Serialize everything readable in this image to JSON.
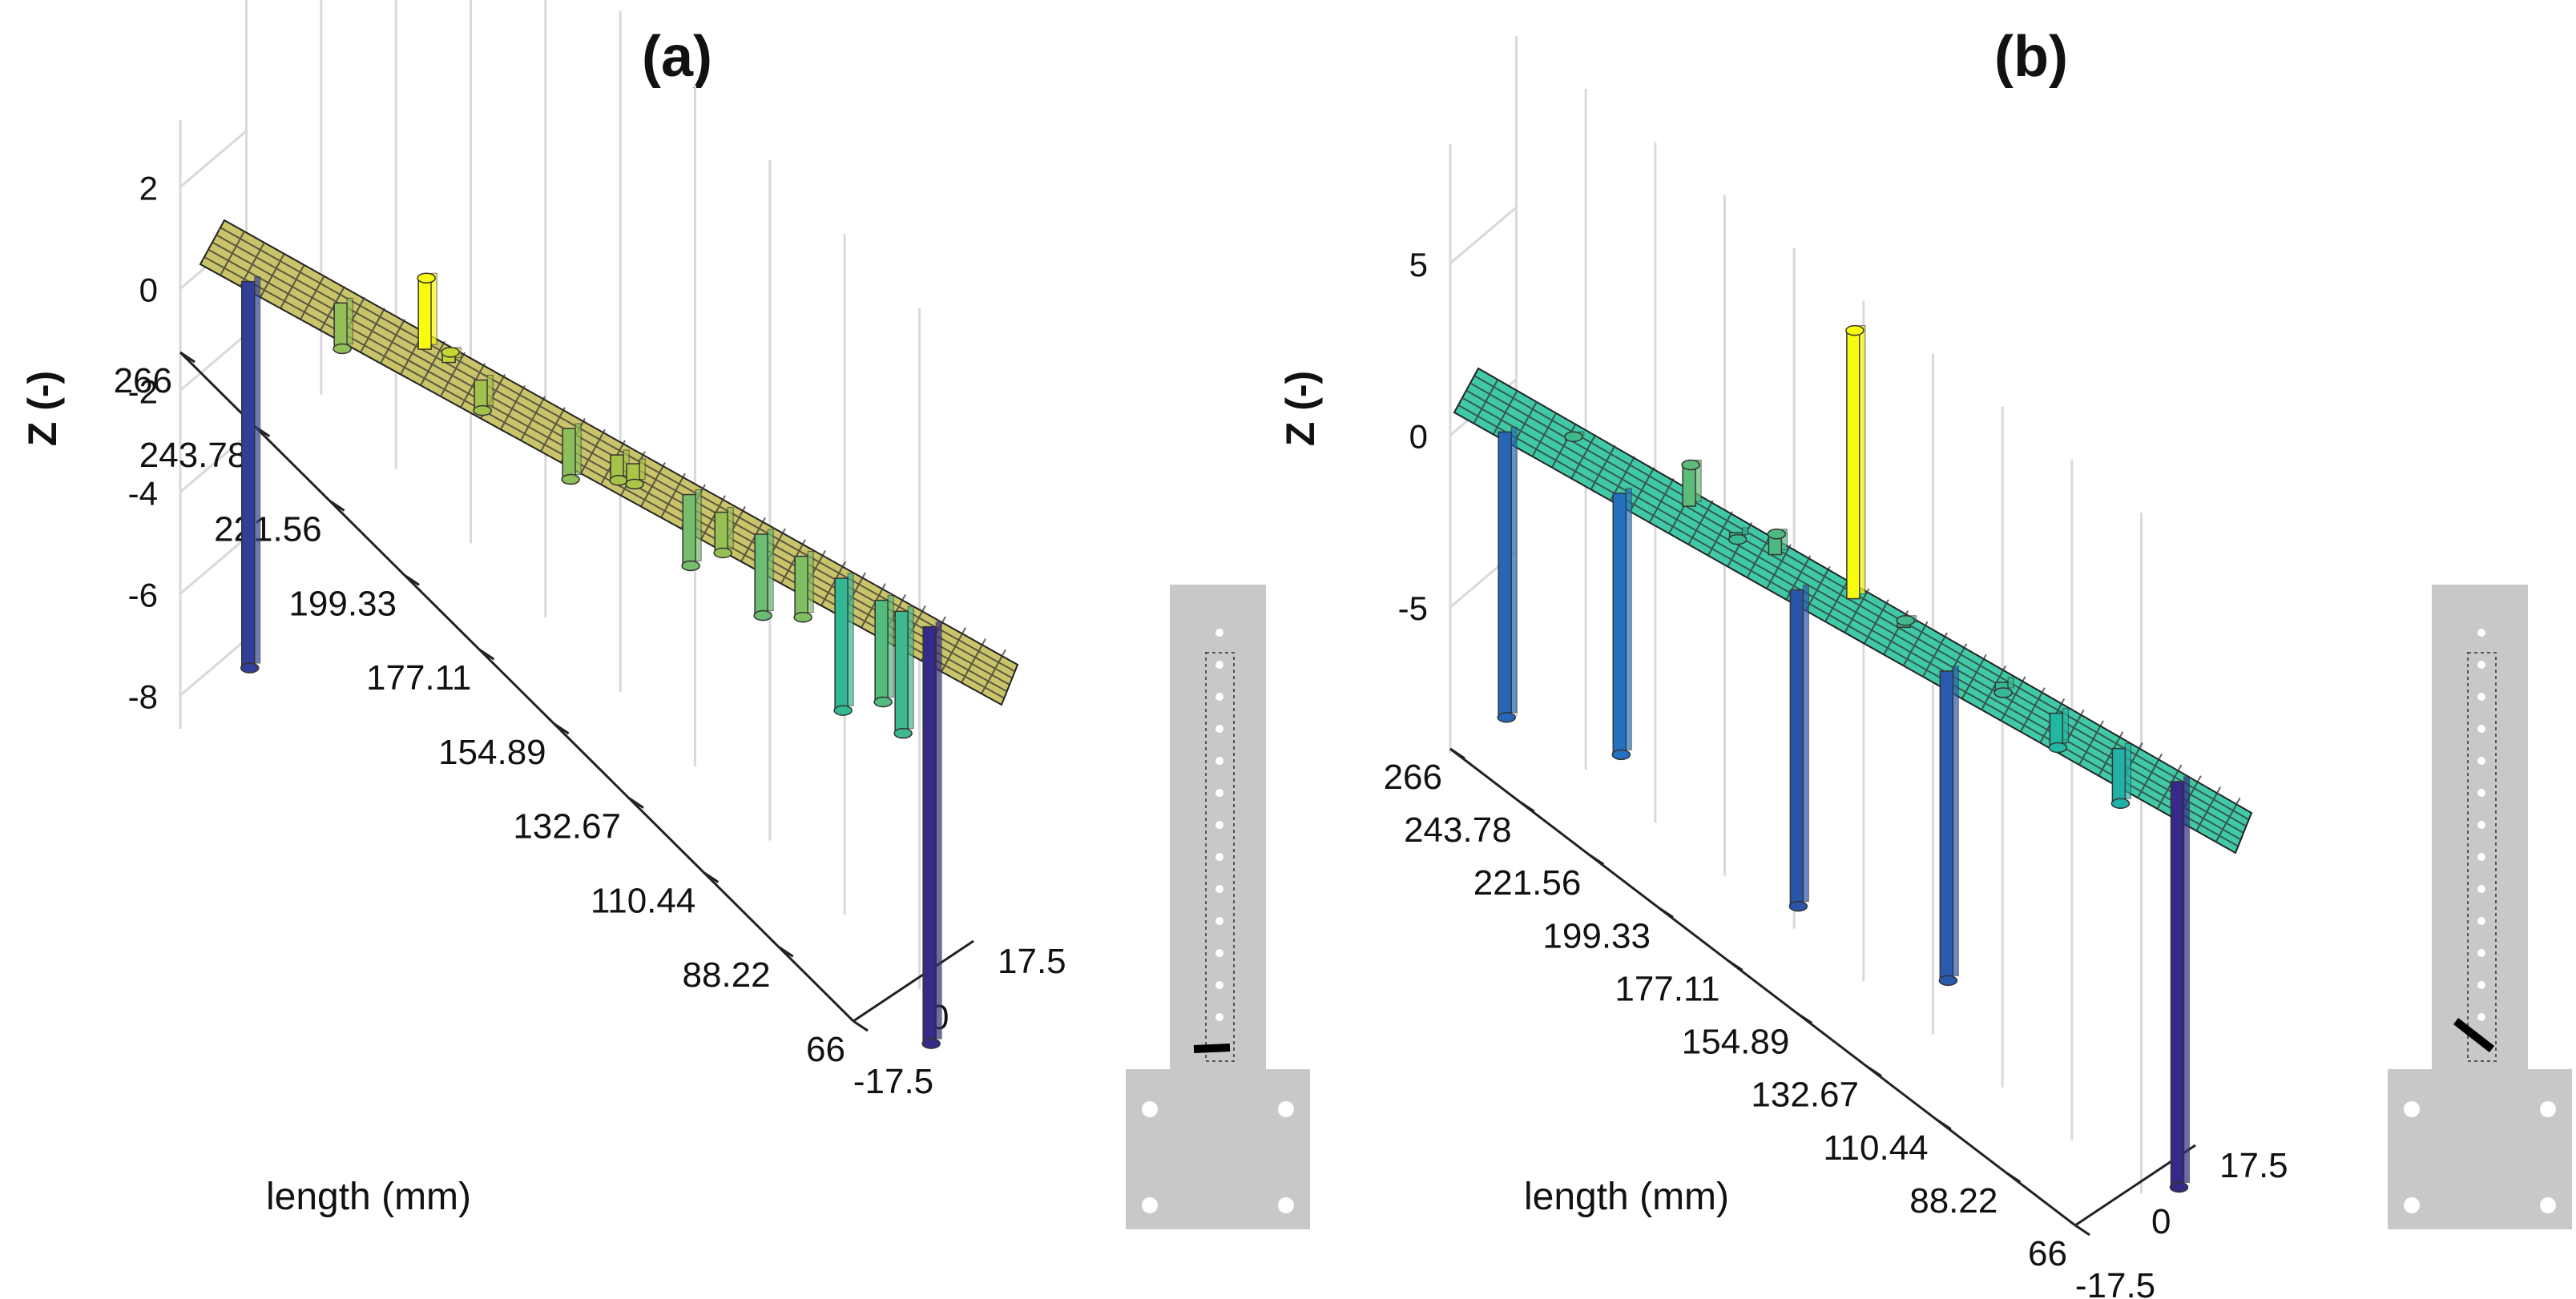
{
  "chart_data": [
    {
      "type": "bar3d",
      "panel_label": "(a)",
      "zlabel": "Z (-)",
      "xlabel": "length  (mm)",
      "z_ticks": [
        2,
        0,
        -2,
        -4,
        -6,
        -8
      ],
      "z_range": [
        -8.5,
        3
      ],
      "length_ticks": [
        "266",
        "243.78",
        "221.56",
        "199.33",
        "177.11",
        "154.89",
        "132.67",
        "110.44",
        "88.22",
        "66"
      ],
      "width_ticks": [
        "0",
        "17.5",
        "-17.5"
      ],
      "length_range": [
        66,
        266
      ],
      "width_range": [
        -17.5,
        17.5
      ],
      "surface_level": 0,
      "color_scale": "parula",
      "surface_color": "#c9c36a",
      "bars": [
        {
          "length": 255.0,
          "width": -12.0,
          "z": -7.6
        },
        {
          "length": 88.0,
          "width": 6.0,
          "z": -8.2
        },
        {
          "length": 214.0,
          "width": 6.0,
          "z": 1.4
        },
        {
          "length": 208.0,
          "width": 6.0,
          "z": 0.2
        },
        {
          "length": 200.0,
          "width": 6.0,
          "z": -0.6
        },
        {
          "length": 166.0,
          "width": 6.0,
          "z": -0.5
        },
        {
          "length": 162.0,
          "width": 6.0,
          "z": -0.4
        },
        {
          "length": 140.0,
          "width": 6.0,
          "z": -0.8
        },
        {
          "length": 120.0,
          "width": 6.0,
          "z": -1.2
        },
        {
          "length": 100.0,
          "width": 6.0,
          "z": -2.0
        },
        {
          "length": 148.0,
          "width": 6.0,
          "z": -1.4
        },
        {
          "length": 110.0,
          "width": 6.0,
          "z": -2.6
        },
        {
          "length": 235.0,
          "width": 6.0,
          "z": -0.9
        },
        {
          "length": 178.0,
          "width": 6.0,
          "z": -1.0
        },
        {
          "length": 130.0,
          "width": 6.0,
          "z": -1.6
        },
        {
          "length": 95.0,
          "width": 6.0,
          "z": -2.4
        }
      ]
    },
    {
      "type": "bar3d",
      "panel_label": "(b)",
      "zlabel": "Z (-)",
      "xlabel": "length  (mm)",
      "z_ticks": [
        5,
        0,
        -5
      ],
      "z_range": [
        -9,
        8
      ],
      "length_ticks": [
        "266",
        "243.78",
        "221.56",
        "199.33",
        "177.11",
        "154.89",
        "132.67",
        "110.44",
        "88.22",
        "66"
      ],
      "width_ticks": [
        "0",
        "17.5",
        "-17.5"
      ],
      "length_range": [
        66,
        266
      ],
      "width_range": [
        -17.5,
        17.5
      ],
      "surface_level": 0,
      "color_scale": "parula",
      "surface_color": "#3fc9a6",
      "bars": [
        {
          "length": 254.0,
          "width": -12.0,
          "z": -8.3
        },
        {
          "length": 225.0,
          "width": -10.0,
          "z": -7.6
        },
        {
          "length": 180.0,
          "width": -8.0,
          "z": -9.2
        },
        {
          "length": 142.0,
          "width": -6.0,
          "z": -9.0
        },
        {
          "length": 85.0,
          "width": 6.0,
          "z": -11.8
        },
        {
          "length": 168.0,
          "width": 6.0,
          "z": 7.8
        },
        {
          "length": 210.0,
          "width": 6.0,
          "z": 1.2
        },
        {
          "length": 188.0,
          "width": 6.0,
          "z": 0.6
        },
        {
          "length": 155.0,
          "width": 6.0,
          "z": 0.2
        },
        {
          "length": 130.0,
          "width": 6.0,
          "z": -0.3
        },
        {
          "length": 240.0,
          "width": 6.0,
          "z": 0.1
        },
        {
          "length": 116.0,
          "width": 6.0,
          "z": -1.0
        },
        {
          "length": 198.0,
          "width": 6.0,
          "z": -0.2
        },
        {
          "length": 100.0,
          "width": 6.0,
          "z": -1.6
        }
      ]
    }
  ],
  "colors": {
    "parula_low": "#3e26a8",
    "parula_mid": "#20b2a0",
    "parula_high": "#f9fb0e",
    "grid": "#d9d9d9",
    "specimen": "#c8c8c8"
  }
}
